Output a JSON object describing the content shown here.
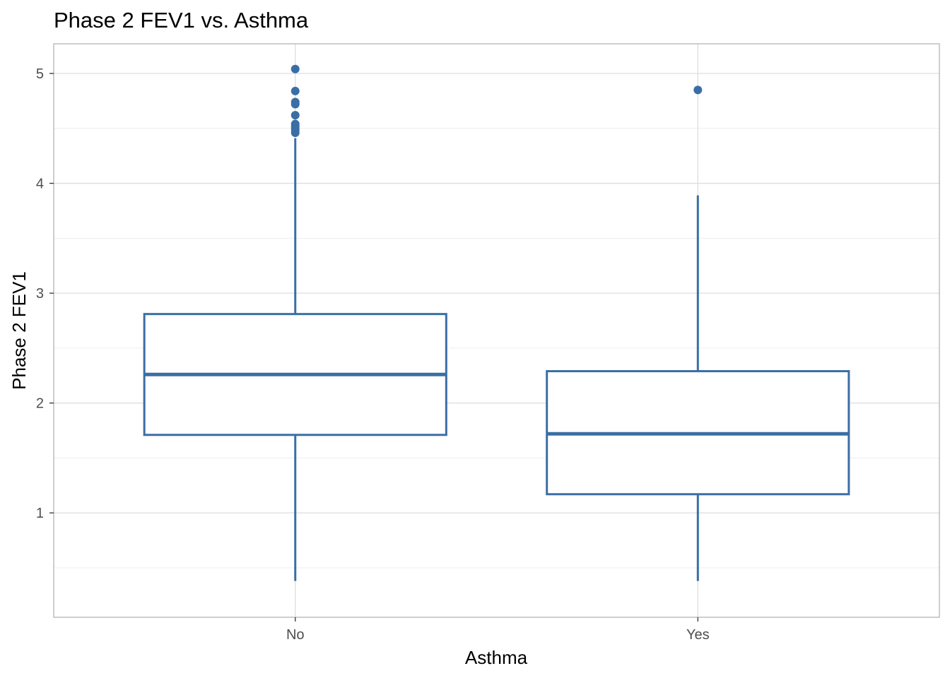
{
  "chart_data": {
    "type": "boxplot",
    "title": "Phase 2 FEV1 vs. Asthma",
    "xlabel": "Asthma",
    "ylabel": "Phase 2 FEV1",
    "ylim": [
      0.05,
      5.27
    ],
    "y_ticks": [
      1,
      2,
      3,
      4,
      5
    ],
    "y_tick_labels": [
      "1",
      "2",
      "3",
      "4",
      "5"
    ],
    "y_minor": [
      0.5,
      1.5,
      2.5,
      3.5,
      4.5
    ],
    "grid": true,
    "legend": "none",
    "color": "#3a6ea5",
    "categories": [
      "No",
      "Yes"
    ],
    "boxes": [
      {
        "category": "No",
        "whisker_low": 0.38,
        "q1": 1.71,
        "median": 2.26,
        "q3": 2.81,
        "whisker_high": 4.41,
        "outliers": [
          5.04,
          4.84,
          4.74,
          4.72,
          4.62,
          4.54,
          4.52,
          4.5,
          4.48,
          4.46
        ]
      },
      {
        "category": "Yes",
        "whisker_low": 0.38,
        "q1": 1.17,
        "median": 1.72,
        "q3": 2.29,
        "whisker_high": 3.89,
        "outliers": [
          4.85
        ]
      }
    ]
  }
}
